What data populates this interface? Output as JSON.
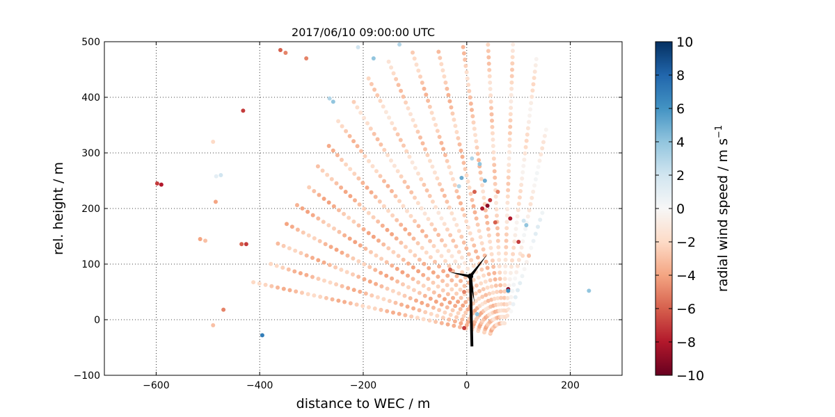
{
  "chart_data": {
    "type": "scatter",
    "title": "2017/06/10 09:00:00 UTC",
    "xlabel": "distance to WEC / m",
    "ylabel": "rel. height / m",
    "xlim": [
      -700,
      300
    ],
    "ylim": [
      -100,
      500
    ],
    "xticks": [
      -600,
      -400,
      -200,
      0,
      200
    ],
    "yticks": [
      -100,
      0,
      100,
      200,
      300,
      400,
      500
    ],
    "grid": true,
    "colorbar": {
      "label": "radial wind speed / m s",
      "label_superscript": "−1",
      "range": [
        -10,
        10
      ],
      "ticks": [
        -10,
        -8,
        -6,
        -4,
        -2,
        0,
        2,
        4,
        6,
        8,
        10
      ],
      "colormap": "RdBu"
    },
    "scan": {
      "origin": [
        70,
        -30
      ],
      "rays": [
        {
          "angle_deg": 12,
          "r_min": 25,
          "r_max": 500,
          "spacing": 12,
          "v": -2.8
        },
        {
          "angle_deg": 17,
          "r_min": 25,
          "r_max": 480,
          "spacing": 12,
          "v": -2.9
        },
        {
          "angle_deg": 22,
          "r_min": 25,
          "r_max": 470,
          "spacing": 12,
          "v": -3.0
        },
        {
          "angle_deg": 27,
          "r_min": 25,
          "r_max": 470,
          "spacing": 12,
          "v": -3.1
        },
        {
          "angle_deg": 32,
          "r_min": 25,
          "r_max": 470,
          "spacing": 12,
          "v": -3.2
        },
        {
          "angle_deg": 37,
          "r_min": 25,
          "r_max": 480,
          "spacing": 12,
          "v": -3.2
        },
        {
          "angle_deg": 42,
          "r_min": 25,
          "r_max": 490,
          "spacing": 12,
          "v": -3.1
        },
        {
          "angle_deg": 47,
          "r_min": 25,
          "r_max": 500,
          "spacing": 12,
          "v": -2.9
        },
        {
          "angle_deg": 52,
          "r_min": 25,
          "r_max": 520,
          "spacing": 12,
          "v": -2.6
        },
        {
          "angle_deg": 57,
          "r_min": 25,
          "r_max": 540,
          "spacing": 12,
          "v": -2.2
        },
        {
          "angle_deg": 62,
          "r_min": 25,
          "r_max": 560,
          "spacing": 12,
          "v": -2.0
        },
        {
          "angle_deg": 67,
          "r_min": 25,
          "r_max": 570,
          "spacing": 12,
          "v": -2.3
        },
        {
          "angle_deg": 72,
          "r_min": 25,
          "r_max": 570,
          "spacing": 12,
          "v": -2.6
        },
        {
          "angle_deg": 77,
          "r_min": 25,
          "r_max": 560,
          "spacing": 12,
          "v": -2.7
        },
        {
          "angle_deg": 82,
          "r_min": 25,
          "r_max": 560,
          "spacing": 12,
          "v": -2.5
        },
        {
          "angle_deg": 87,
          "r_min": 25,
          "r_max": 560,
          "spacing": 12,
          "v": -2.2
        },
        {
          "angle_deg": 92,
          "r_min": 25,
          "r_max": 560,
          "spacing": 12,
          "v": -1.8
        },
        {
          "angle_deg": 97,
          "r_min": 25,
          "r_max": 530,
          "spacing": 12,
          "v": -1.2
        },
        {
          "angle_deg": 102,
          "r_min": 40,
          "r_max": 400,
          "spacing": 12,
          "v": -0.6
        },
        {
          "angle_deg": 108,
          "r_min": 50,
          "r_max": 250,
          "spacing": 14,
          "v": 0.4
        }
      ]
    },
    "extra_points": [
      {
        "x": -598,
        "y": 245,
        "v": -7
      },
      {
        "x": -590,
        "y": 243,
        "v": -8
      },
      {
        "x": -490,
        "y": 320,
        "v": -2
      },
      {
        "x": -485,
        "y": 212,
        "v": -4
      },
      {
        "x": -484,
        "y": 258,
        "v": 1
      },
      {
        "x": -475,
        "y": 260,
        "v": 2
      },
      {
        "x": -432,
        "y": 376,
        "v": -7
      },
      {
        "x": -395,
        "y": -28,
        "v": 7
      },
      {
        "x": -435,
        "y": 136,
        "v": -6
      },
      {
        "x": -426,
        "y": 136,
        "v": -7
      },
      {
        "x": -515,
        "y": 145,
        "v": -4
      },
      {
        "x": -505,
        "y": 142,
        "v": -3
      },
      {
        "x": -490,
        "y": -10,
        "v": -3
      },
      {
        "x": -470,
        "y": 18,
        "v": -5
      },
      {
        "x": -360,
        "y": 485,
        "v": -6
      },
      {
        "x": -350,
        "y": 480,
        "v": -5
      },
      {
        "x": -310,
        "y": 470,
        "v": -5
      },
      {
        "x": -258,
        "y": 392,
        "v": 4
      },
      {
        "x": -265,
        "y": 398,
        "v": 3
      },
      {
        "x": 80,
        "y": 55,
        "v": -9
      },
      {
        "x": 80,
        "y": 52,
        "v": 6
      },
      {
        "x": 84,
        "y": 182,
        "v": -8
      },
      {
        "x": 40,
        "y": 205,
        "v": -9
      },
      {
        "x": 45,
        "y": 215,
        "v": -7
      },
      {
        "x": 30,
        "y": 200,
        "v": -8
      },
      {
        "x": 100,
        "y": 140,
        "v": -7
      },
      {
        "x": 115,
        "y": 170,
        "v": 4
      },
      {
        "x": 110,
        "y": 178,
        "v": 2
      },
      {
        "x": 236,
        "y": 52,
        "v": 4
      },
      {
        "x": 120,
        "y": 115,
        "v": -3
      },
      {
        "x": 108,
        "y": 115,
        "v": -2
      },
      {
        "x": 20,
        "y": 10,
        "v": 4
      },
      {
        "x": -5,
        "y": -15,
        "v": -7
      },
      {
        "x": -32,
        "y": 90,
        "v": -6
      },
      {
        "x": -5,
        "y": 50,
        "v": -5
      },
      {
        "x": 10,
        "y": 290,
        "v": 3
      },
      {
        "x": 25,
        "y": 280,
        "v": 4
      },
      {
        "x": 35,
        "y": 250,
        "v": 5
      },
      {
        "x": -15,
        "y": 240,
        "v": 3
      },
      {
        "x": -10,
        "y": 255,
        "v": 5
      },
      {
        "x": 15,
        "y": 230,
        "v": -6
      },
      {
        "x": 60,
        "y": 230,
        "v": -5
      },
      {
        "x": 55,
        "y": 175,
        "v": -6
      },
      {
        "x": -180,
        "y": 470,
        "v": 4
      },
      {
        "x": -210,
        "y": 490,
        "v": 2
      },
      {
        "x": -130,
        "y": 495,
        "v": 3
      }
    ],
    "turbine": {
      "base": [
        10,
        -48
      ],
      "hub": [
        7,
        78
      ],
      "blade_tips": [
        [
          40,
          118
        ],
        [
          15,
          30
        ],
        [
          -35,
          86
        ]
      ]
    }
  }
}
